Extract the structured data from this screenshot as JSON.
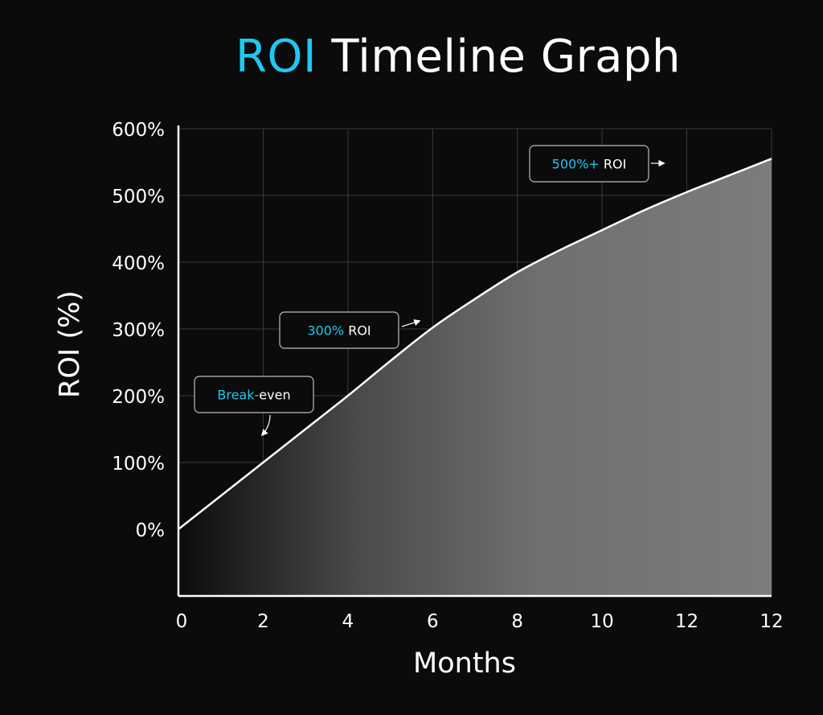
{
  "title": {
    "accent": "ROI",
    "rest": "Timeline Graph"
  },
  "colors": {
    "background": "#0b0b0b",
    "accent": "#1ec8f0",
    "line": "#ffffff",
    "grid": "#3a3a3a",
    "area": "#7a7a7a"
  },
  "chart_data": {
    "type": "area",
    "xlabel": "Months",
    "ylabel": "ROI (%)",
    "xlim": [
      0,
      14
    ],
    "ylim": [
      -100,
      600
    ],
    "x_ticks": [
      "0",
      "2",
      "4",
      "6",
      "8",
      "10",
      "12"
    ],
    "x_tick_values": [
      0,
      2,
      4,
      6,
      8,
      10,
      12
    ],
    "y_ticks": [
      "0%",
      "100%",
      "200%",
      "300%",
      "400%",
      "500%",
      "600%"
    ],
    "y_tick_values": [
      0,
      100,
      200,
      300,
      400,
      500,
      600
    ],
    "grid": true,
    "series": [
      {
        "x": [
          0,
          1,
          2,
          3,
          4,
          5,
          6,
          7,
          8,
          9,
          10,
          11,
          12,
          13,
          14
        ],
        "y": [
          0,
          50,
          100,
          150,
          200,
          252,
          302,
          345,
          385,
          418,
          448,
          478,
          505,
          530,
          555
        ]
      }
    ],
    "annotations": [
      {
        "accent": "Break-",
        "text": "even",
        "x": 2,
        "y": 100
      },
      {
        "accent": "300%",
        "text": " ROI",
        "x": 6,
        "y": 300
      },
      {
        "accent": "500%+",
        "text": " ROI",
        "x": 12,
        "y": 530
      }
    ]
  }
}
